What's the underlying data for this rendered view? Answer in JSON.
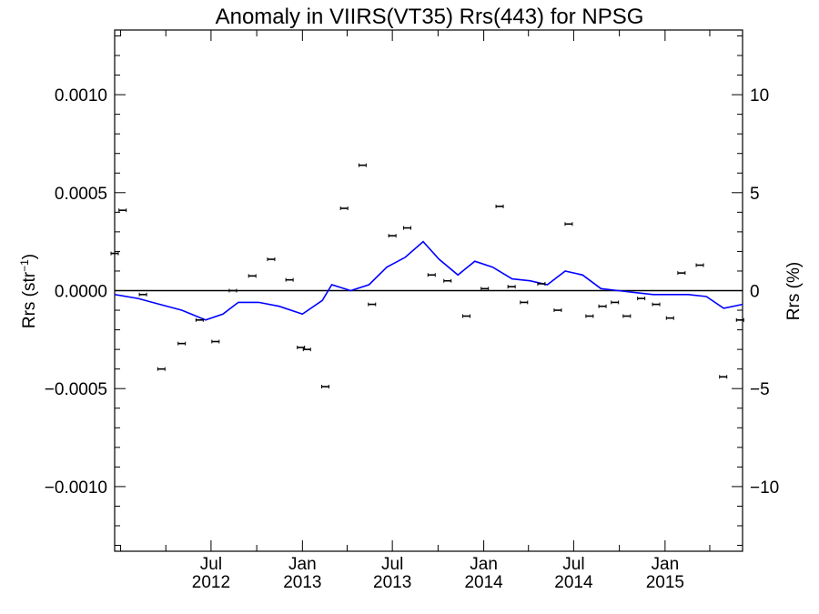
{
  "chart_data": {
    "type": "scatter",
    "title": "Anomaly in VIIRS(VT35) Rrs(443) for NPSG",
    "ylabel": "Rrs (str",
    "ylabel_sup": "−1",
    "ylabel_close": ")",
    "y2label": "Rrs (%)",
    "ylim": [
      -0.00133,
      0.00133
    ],
    "y2lim": [
      -13.3,
      13.3
    ],
    "xlim": [
      "2011-12-20",
      "2015-06-06"
    ],
    "y_ticks": [
      {
        "value": 0.001,
        "label": "0.0010"
      },
      {
        "value": 0.0005,
        "label": "0.0005"
      },
      {
        "value": 0.0,
        "label": "0.0000"
      },
      {
        "value": -0.0005,
        "label": "−0.0005"
      },
      {
        "value": -0.001,
        "label": "−0.0010"
      }
    ],
    "y2_ticks": [
      {
        "value": 10,
        "label": "10"
      },
      {
        "value": 5,
        "label": "5"
      },
      {
        "value": 0,
        "label": "0"
      },
      {
        "value": -5,
        "label": "−5"
      },
      {
        "value": -10,
        "label": "−10"
      }
    ],
    "x_ticks": [
      {
        "date": "2012-07-01",
        "label1": "Jul",
        "label2": "2012"
      },
      {
        "date": "2013-01-01",
        "label1": "Jan",
        "label2": "2013"
      },
      {
        "date": "2013-07-01",
        "label1": "Jul",
        "label2": "2013"
      },
      {
        "date": "2014-01-01",
        "label1": "Jan",
        "label2": "2014"
      },
      {
        "date": "2014-07-01",
        "label1": "Jul",
        "label2": "2014"
      },
      {
        "date": "2015-01-01",
        "label1": "Jan",
        "label2": "2015"
      }
    ],
    "anomaly_points": [
      {
        "x": "2011-12-20",
        "y": 0.00019
      },
      {
        "x": "2012-01-05",
        "y": 0.00041
      },
      {
        "x": "2012-02-15",
        "y": -2e-05
      },
      {
        "x": "2012-03-23",
        "y": -0.0004
      },
      {
        "x": "2012-05-03",
        "y": -0.00027
      },
      {
        "x": "2012-06-08",
        "y": -0.00015
      },
      {
        "x": "2012-07-10",
        "y": -0.00026
      },
      {
        "x": "2012-08-14",
        "y": 0.0
      },
      {
        "x": "2012-09-22",
        "y": 7.5e-05
      },
      {
        "x": "2012-10-30",
        "y": 0.00016
      },
      {
        "x": "2012-12-06",
        "y": 5.5e-05
      },
      {
        "x": "2012-12-29",
        "y": -0.00029
      },
      {
        "x": "2013-01-10",
        "y": -0.0003
      },
      {
        "x": "2013-02-16",
        "y": -0.00049
      },
      {
        "x": "2013-03-26",
        "y": 0.00042
      },
      {
        "x": "2013-05-02",
        "y": 0.00064
      },
      {
        "x": "2013-05-21",
        "y": -7e-05
      },
      {
        "x": "2013-07-01",
        "y": 0.00028
      },
      {
        "x": "2013-07-31",
        "y": 0.00032
      },
      {
        "x": "2013-09-18",
        "y": 8e-05
      },
      {
        "x": "2013-10-20",
        "y": 5e-05
      },
      {
        "x": "2013-11-27",
        "y": -0.00013
      },
      {
        "x": "2014-01-03",
        "y": 1e-05
      },
      {
        "x": "2014-02-02",
        "y": 0.00043
      },
      {
        "x": "2014-02-26",
        "y": 2e-05
      },
      {
        "x": "2014-03-23",
        "y": -6e-05
      },
      {
        "x": "2014-04-27",
        "y": 3.5e-05
      },
      {
        "x": "2014-05-30",
        "y": -0.0001
      },
      {
        "x": "2014-06-21",
        "y": 0.00034
      },
      {
        "x": "2014-08-02",
        "y": -0.00013
      },
      {
        "x": "2014-08-28",
        "y": -8e-05
      },
      {
        "x": "2014-09-22",
        "y": -6e-05
      },
      {
        "x": "2014-10-16",
        "y": -0.00013
      },
      {
        "x": "2014-11-14",
        "y": -4e-05
      },
      {
        "x": "2014-12-14",
        "y": -7e-05
      },
      {
        "x": "2015-01-11",
        "y": -0.00014
      },
      {
        "x": "2015-02-03",
        "y": 9e-05
      },
      {
        "x": "2015-03-12",
        "y": 0.00013
      },
      {
        "x": "2015-04-28",
        "y": -0.00044
      },
      {
        "x": "2015-06-01",
        "y": -0.00015
      }
    ],
    "smoothed_line": {
      "color": "#0000ff",
      "points": [
        {
          "x": "2011-12-20",
          "y": -2e-05
        },
        {
          "x": "2012-02-05",
          "y": -4e-05
        },
        {
          "x": "2012-03-20",
          "y": -7e-05
        },
        {
          "x": "2012-05-03",
          "y": -0.0001
        },
        {
          "x": "2012-06-20",
          "y": -0.00015
        },
        {
          "x": "2012-07-25",
          "y": -0.00012
        },
        {
          "x": "2012-08-25",
          "y": -6e-05
        },
        {
          "x": "2012-10-05",
          "y": -6e-05
        },
        {
          "x": "2012-11-15",
          "y": -8e-05
        },
        {
          "x": "2013-01-01",
          "y": -0.00012
        },
        {
          "x": "2013-02-10",
          "y": -5e-05
        },
        {
          "x": "2013-03-01",
          "y": 3e-05
        },
        {
          "x": "2013-04-08",
          "y": 0.0
        },
        {
          "x": "2013-05-15",
          "y": 3e-05
        },
        {
          "x": "2013-06-20",
          "y": 0.00012
        },
        {
          "x": "2013-07-27",
          "y": 0.00017
        },
        {
          "x": "2013-09-01",
          "y": 0.00025
        },
        {
          "x": "2013-10-03",
          "y": 0.00016
        },
        {
          "x": "2013-11-10",
          "y": 8e-05
        },
        {
          "x": "2013-12-14",
          "y": 0.00015
        },
        {
          "x": "2014-01-19",
          "y": 0.00012
        },
        {
          "x": "2014-02-27",
          "y": 6e-05
        },
        {
          "x": "2014-04-04",
          "y": 5e-05
        },
        {
          "x": "2014-05-09",
          "y": 3e-05
        },
        {
          "x": "2014-06-14",
          "y": 0.0001
        },
        {
          "x": "2014-07-19",
          "y": 8e-05
        },
        {
          "x": "2014-08-25",
          "y": 1e-05
        },
        {
          "x": "2014-09-29",
          "y": 0.0
        },
        {
          "x": "2014-11-03",
          "y": -1e-05
        },
        {
          "x": "2014-12-08",
          "y": -2e-05
        },
        {
          "x": "2015-01-13",
          "y": -2e-05
        },
        {
          "x": "2015-02-17",
          "y": -2e-05
        },
        {
          "x": "2015-03-25",
          "y": -3e-05
        },
        {
          "x": "2015-04-29",
          "y": -9e-05
        },
        {
          "x": "2015-06-06",
          "y": -7e-05
        }
      ]
    },
    "zero_line": true,
    "grid": false
  }
}
